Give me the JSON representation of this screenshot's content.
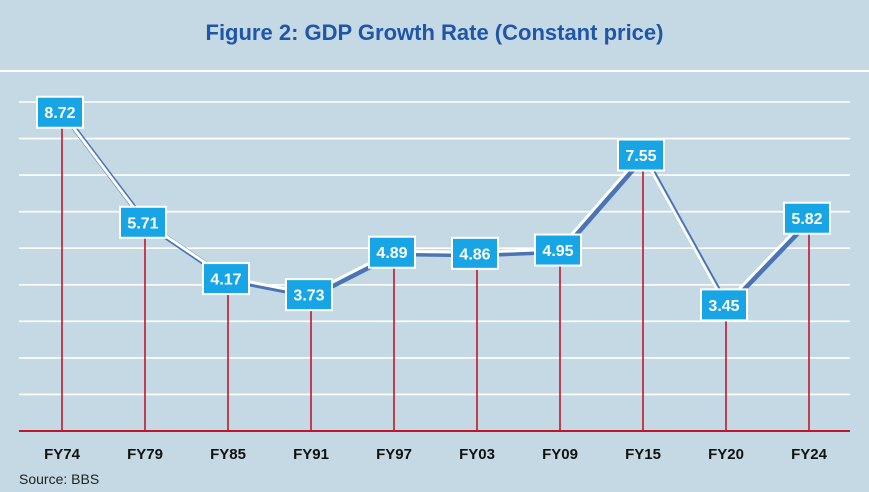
{
  "chart_data": {
    "type": "line",
    "title": "Figure 2: GDP Growth Rate (Constant price)",
    "xlabel": "",
    "ylabel": "",
    "categories": [
      "FY74",
      "FY79",
      "FY85",
      "FY91",
      "FY97",
      "FY03",
      "FY09",
      "FY15",
      "FY20",
      "FY24"
    ],
    "series": [
      {
        "name": "GDP Growth Rate",
        "values": [
          8.72,
          5.71,
          4.17,
          3.73,
          4.89,
          4.86,
          4.95,
          7.55,
          3.45,
          5.82
        ]
      }
    ],
    "data_labels": [
      "8.72",
      "5.71",
      "4.17",
      "3.73",
      "4.89",
      "4.86",
      "4.95",
      "7.55",
      "3.45",
      "5.82"
    ],
    "ylim": [
      0,
      9
    ],
    "gridlines": 9,
    "grid": true,
    "source": "Source: BBS"
  },
  "colors": {
    "background": "#c5d9e4",
    "title": "#1f56a7",
    "line": "#4a74b4",
    "line_highlight": "#ffffff",
    "drop_line": "#c0162c",
    "label_box": "#17a5e6"
  }
}
